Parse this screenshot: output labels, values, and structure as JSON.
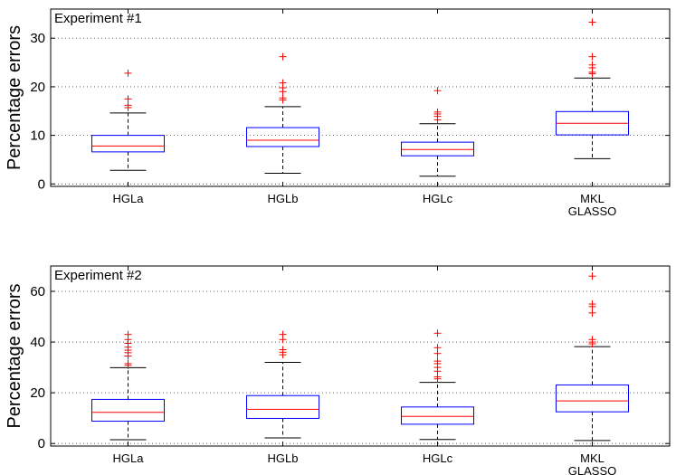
{
  "chart_data": [
    {
      "type": "box",
      "title": "Experiment #1",
      "ylabel": "Percentage errors",
      "xlabel": "",
      "ylim": [
        -0.5,
        36
      ],
      "yticks": [
        0,
        10,
        20,
        30
      ],
      "grid": true,
      "categories": [
        {
          "label": "HGLa",
          "label2": ""
        },
        {
          "label": "HGLb",
          "label2": ""
        },
        {
          "label": "HGLc",
          "label2": ""
        },
        {
          "label": "MKL",
          "label2": "GLASSO"
        }
      ],
      "boxes": [
        {
          "whislo": 2.8,
          "q1": 6.6,
          "med": 7.8,
          "q3": 10.0,
          "whishi": 14.6,
          "fliers": [
            15.7,
            16.2,
            17.5,
            22.8
          ]
        },
        {
          "whislo": 2.2,
          "q1": 7.7,
          "med": 9.0,
          "q3": 11.6,
          "whishi": 15.9,
          "fliers": [
            17.3,
            17.7,
            19.0,
            19.8,
            20.8,
            26.2
          ]
        },
        {
          "whislo": 1.6,
          "q1": 5.8,
          "med": 7.1,
          "q3": 8.6,
          "whishi": 12.4,
          "fliers": [
            13.2,
            13.9,
            14.4,
            14.8,
            19.2
          ]
        },
        {
          "whislo": 5.2,
          "q1": 10.1,
          "med": 12.5,
          "q3": 14.9,
          "whishi": 21.8,
          "fliers": [
            22.7,
            23.0,
            23.9,
            24.5,
            26.2,
            33.3
          ]
        }
      ]
    },
    {
      "type": "box",
      "title": "Experiment #2",
      "ylabel": "Percentage errors",
      "xlabel": "",
      "ylim": [
        -1,
        70
      ],
      "yticks": [
        0,
        20,
        40,
        60
      ],
      "grid": true,
      "categories": [
        {
          "label": "HGLa",
          "label2": ""
        },
        {
          "label": "HGLb",
          "label2": ""
        },
        {
          "label": "HGLc",
          "label2": ""
        },
        {
          "label": "MKL",
          "label2": "GLASSO"
        }
      ],
      "boxes": [
        {
          "whislo": 1.5,
          "q1": 8.8,
          "med": 12.3,
          "q3": 17.4,
          "whishi": 29.9,
          "fliers": [
            30.8,
            31.5,
            34.5,
            35.8,
            36.8,
            38.0,
            39.5,
            41.0,
            43.0
          ]
        },
        {
          "whislo": 2.2,
          "q1": 9.9,
          "med": 13.5,
          "q3": 18.9,
          "whishi": 32.0,
          "fliers": [
            35.0,
            36.0,
            37.0,
            41.0,
            43.0
          ]
        },
        {
          "whislo": 1.6,
          "q1": 7.6,
          "med": 10.7,
          "q3": 14.4,
          "whishi": 24.1,
          "fliers": [
            25.5,
            26.3,
            28.5,
            30.0,
            31.5,
            32.5,
            35.5,
            37.8,
            43.5
          ]
        },
        {
          "whislo": 1.2,
          "q1": 12.5,
          "med": 16.8,
          "q3": 23.1,
          "whishi": 38.2,
          "fliers": [
            39.3,
            40.0,
            41.0,
            51.5,
            54.0,
            55.0,
            66.0
          ]
        }
      ]
    }
  ]
}
